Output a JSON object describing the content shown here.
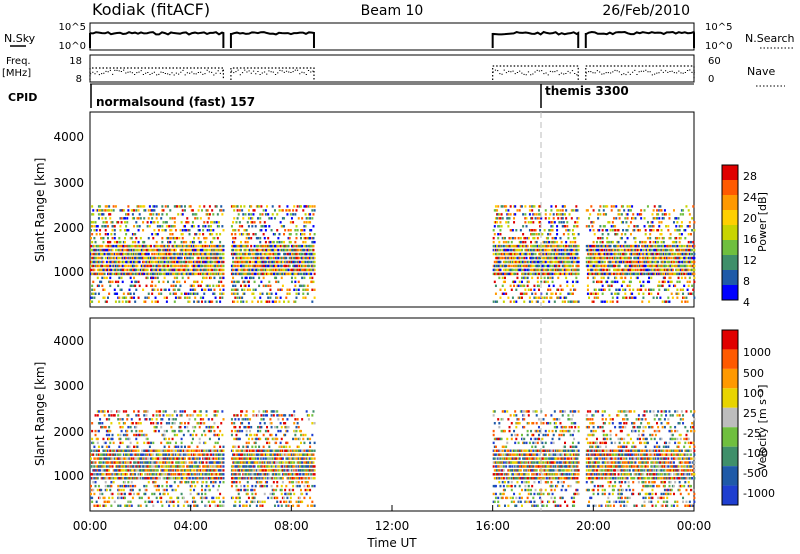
{
  "header": {
    "station": "Kodiak (fitACF)",
    "beam": "Beam 10",
    "date": "26/Feb/2010"
  },
  "status_panels": {
    "nsky": {
      "label": "N.Sky",
      "ticks": [
        "10^5",
        "10^0"
      ]
    },
    "nsearch": {
      "label": "N.Search",
      "ticks": [
        "10^5",
        "10^0"
      ]
    },
    "freq": {
      "label_top": "Freq.",
      "label_bottom": "[MHz]",
      "ticks": [
        "18",
        "8"
      ]
    },
    "nave": {
      "label": "Nave",
      "ticks": [
        "60",
        "0"
      ]
    },
    "cpid": {
      "label": "CPID",
      "modes": [
        {
          "name": "normalsound (fast) 157",
          "start_hour": 0
        },
        {
          "name": "themis 3300",
          "start_hour": 18
        }
      ]
    }
  },
  "colors": {
    "power": [
      "#0000ff",
      "#1f5aa8",
      "#3f8f6a",
      "#6fbf3f",
      "#c8d400",
      "#ffd000",
      "#ff9900",
      "#ff5a00",
      "#e00000"
    ],
    "velocity": [
      "#1f3fd0",
      "#1f5aa8",
      "#3f8f6a",
      "#6fbf3f",
      "#bdbdbd",
      "#e8d400",
      "#ff9900",
      "#ff5a00",
      "#e00000"
    ]
  },
  "chart_data": [
    {
      "type": "heatmap",
      "panel": "power",
      "ylabel": "Slant Range [km]",
      "ylim": [
        180,
        4600
      ],
      "yticks": [
        "4000",
        "3000",
        "2000",
        "1000"
      ],
      "colorbar": {
        "label": "Power [dB]",
        "ticks": [
          "28",
          "24",
          "20",
          "16",
          "12",
          "8",
          "4"
        ]
      },
      "data_intervals_hours": [
        [
          0.0,
          5.3
        ],
        [
          5.6,
          8.9
        ],
        [
          16.0,
          19.4
        ],
        [
          19.7,
          24.0
        ]
      ]
    },
    {
      "type": "heatmap",
      "panel": "velocity",
      "ylabel": "Slant Range [km]",
      "ylim": [
        180,
        4600
      ],
      "yticks": [
        "4000",
        "3000",
        "2000",
        "1000"
      ],
      "colorbar": {
        "label": "Velocity [m s⁻¹]",
        "ticks": [
          "1000",
          "500",
          "100",
          "25",
          "-25",
          "-100",
          "-500",
          "-1000"
        ]
      },
      "data_intervals_hours": [
        [
          0.0,
          5.3
        ],
        [
          5.6,
          8.9
        ],
        [
          16.0,
          19.4
        ],
        [
          19.7,
          24.0
        ]
      ]
    }
  ],
  "xaxis": {
    "label": "Time UT",
    "ticks": [
      "00:00",
      "04:00",
      "08:00",
      "12:00",
      "16:00",
      "20:00",
      "00:00"
    ]
  }
}
